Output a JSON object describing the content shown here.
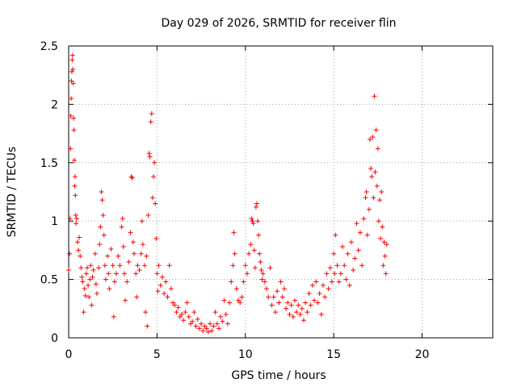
{
  "chart_data": {
    "type": "scatter",
    "title": "Day 029 of 2026, SRMTID for receiver flin",
    "xlabel": "GPS time / hours",
    "ylabel": "SRMTID / TECUs",
    "xlim": [
      0,
      24
    ],
    "ylim": [
      0,
      2.5
    ],
    "xticks": [
      0,
      5,
      10,
      15,
      20
    ],
    "xtick_labels": [
      "0",
      "5",
      "10",
      "15",
      "20"
    ],
    "yticks": [
      0,
      0.5,
      1,
      1.5,
      2,
      2.5
    ],
    "ytick_labels": [
      "0",
      "0.5",
      "1",
      "1.5",
      "2",
      "2.5"
    ],
    "grid": true,
    "marker": "+",
    "series": [
      {
        "name": "SRMTID",
        "color": "#ff0000",
        "points": [
          [
            0.0,
            0.58
          ],
          [
            0.05,
            0.72
          ],
          [
            0.08,
            1.02
          ],
          [
            0.1,
            1.62
          ],
          [
            0.12,
            1.9
          ],
          [
            0.14,
            2.05
          ],
          [
            0.16,
            2.2
          ],
          [
            0.18,
            2.28
          ],
          [
            0.2,
            2.38
          ],
          [
            0.22,
            2.42
          ],
          [
            0.24,
            2.3
          ],
          [
            0.26,
            2.18
          ],
          [
            0.28,
            1.88
          ],
          [
            0.3,
            1.78
          ],
          [
            0.32,
            1.52
          ],
          [
            0.34,
            1.3
          ],
          [
            0.36,
            1.38
          ],
          [
            0.38,
            1.22
          ],
          [
            0.4,
            1.05
          ],
          [
            0.42,
            0.98
          ],
          [
            0.45,
            1.02
          ],
          [
            0.5,
            0.82
          ],
          [
            0.55,
            0.75
          ],
          [
            0.6,
            0.86
          ],
          [
            0.65,
            0.7
          ],
          [
            0.7,
            0.6
          ],
          [
            0.75,
            0.52
          ],
          [
            0.8,
            0.48
          ],
          [
            0.85,
            0.22
          ],
          [
            0.9,
            0.42
          ],
          [
            0.95,
            0.36
          ],
          [
            1.0,
            0.55
          ],
          [
            1.05,
            0.6
          ],
          [
            1.1,
            0.45
          ],
          [
            1.15,
            0.35
          ],
          [
            1.2,
            0.5
          ],
          [
            1.25,
            0.62
          ],
          [
            1.3,
            0.28
          ],
          [
            1.35,
            0.52
          ],
          [
            1.4,
            0.58
          ],
          [
            1.5,
            0.72
          ],
          [
            1.55,
            0.46
          ],
          [
            1.6,
            0.38
          ],
          [
            1.7,
            0.6
          ],
          [
            1.75,
            0.8
          ],
          [
            1.8,
            0.95
          ],
          [
            1.85,
            1.25
          ],
          [
            1.9,
            1.18
          ],
          [
            1.95,
            1.05
          ],
          [
            2.0,
            0.88
          ],
          [
            2.05,
            0.62
          ],
          [
            2.1,
            0.5
          ],
          [
            2.2,
            0.7
          ],
          [
            2.25,
            0.55
          ],
          [
            2.3,
            0.42
          ],
          [
            2.4,
            0.76
          ],
          [
            2.5,
            0.62
          ],
          [
            2.55,
            0.18
          ],
          [
            2.6,
            0.48
          ],
          [
            2.7,
            0.55
          ],
          [
            2.8,
            0.7
          ],
          [
            2.9,
            0.62
          ],
          [
            3.0,
            0.95
          ],
          [
            3.05,
            1.02
          ],
          [
            3.1,
            0.78
          ],
          [
            3.15,
            0.55
          ],
          [
            3.2,
            0.32
          ],
          [
            3.3,
            0.48
          ],
          [
            3.4,
            0.65
          ],
          [
            3.5,
            0.9
          ],
          [
            3.55,
            1.38
          ],
          [
            3.6,
            1.37
          ],
          [
            3.65,
            0.82
          ],
          [
            3.7,
            0.72
          ],
          [
            3.8,
            0.55
          ],
          [
            3.85,
            0.35
          ],
          [
            3.9,
            0.62
          ],
          [
            4.0,
            0.58
          ],
          [
            4.1,
            0.72
          ],
          [
            4.15,
            1.0
          ],
          [
            4.2,
            0.8
          ],
          [
            4.3,
            0.62
          ],
          [
            4.35,
            0.22
          ],
          [
            4.4,
            0.7
          ],
          [
            4.45,
            0.1
          ],
          [
            4.5,
            1.05
          ],
          [
            4.55,
            1.58
          ],
          [
            4.6,
            1.55
          ],
          [
            4.65,
            1.85
          ],
          [
            4.7,
            1.92
          ],
          [
            4.75,
            1.2
          ],
          [
            4.8,
            1.38
          ],
          [
            4.85,
            1.5
          ],
          [
            4.9,
            1.15
          ],
          [
            4.95,
            0.85
          ],
          [
            5.0,
            0.55
          ],
          [
            5.05,
            0.4
          ],
          [
            5.1,
            0.62
          ],
          [
            5.2,
            0.45
          ],
          [
            5.3,
            0.52
          ],
          [
            5.4,
            0.38
          ],
          [
            5.5,
            0.48
          ],
          [
            5.6,
            0.35
          ],
          [
            5.7,
            0.62
          ],
          [
            5.8,
            0.42
          ],
          [
            5.9,
            0.3
          ],
          [
            6.0,
            0.28
          ],
          [
            6.1,
            0.22
          ],
          [
            6.2,
            0.26
          ],
          [
            6.3,
            0.18
          ],
          [
            6.4,
            0.2
          ],
          [
            6.5,
            0.15
          ],
          [
            6.6,
            0.22
          ],
          [
            6.7,
            0.3
          ],
          [
            6.8,
            0.18
          ],
          [
            6.9,
            0.12
          ],
          [
            7.0,
            0.14
          ],
          [
            7.1,
            0.22
          ],
          [
            7.2,
            0.1
          ],
          [
            7.3,
            0.16
          ],
          [
            7.4,
            0.08
          ],
          [
            7.5,
            0.12
          ],
          [
            7.6,
            0.06
          ],
          [
            7.7,
            0.1
          ],
          [
            7.8,
            0.08
          ],
          [
            7.9,
            0.05
          ],
          [
            8.0,
            0.12
          ],
          [
            8.1,
            0.06
          ],
          [
            8.2,
            0.1
          ],
          [
            8.3,
            0.22
          ],
          [
            8.4,
            0.12
          ],
          [
            8.5,
            0.08
          ],
          [
            8.6,
            0.18
          ],
          [
            8.7,
            0.14
          ],
          [
            8.8,
            0.32
          ],
          [
            8.9,
            0.2
          ],
          [
            9.0,
            0.12
          ],
          [
            9.1,
            0.3
          ],
          [
            9.2,
            0.48
          ],
          [
            9.3,
            0.62
          ],
          [
            9.35,
            0.9
          ],
          [
            9.4,
            0.72
          ],
          [
            9.5,
            0.42
          ],
          [
            9.6,
            0.32
          ],
          [
            9.7,
            0.3
          ],
          [
            9.8,
            0.35
          ],
          [
            9.9,
            0.48
          ],
          [
            10.0,
            0.62
          ],
          [
            10.1,
            0.55
          ],
          [
            10.2,
            0.72
          ],
          [
            10.3,
            0.8
          ],
          [
            10.35,
            1.02
          ],
          [
            10.4,
            1.0
          ],
          [
            10.45,
            0.98
          ],
          [
            10.5,
            0.75
          ],
          [
            10.55,
            0.6
          ],
          [
            10.6,
            1.12
          ],
          [
            10.65,
            1.15
          ],
          [
            10.7,
            1.0
          ],
          [
            10.75,
            0.88
          ],
          [
            10.8,
            0.72
          ],
          [
            10.85,
            0.65
          ],
          [
            10.9,
            0.58
          ],
          [
            10.95,
            0.5
          ],
          [
            11.0,
            0.55
          ],
          [
            11.1,
            0.48
          ],
          [
            11.2,
            0.42
          ],
          [
            11.3,
            0.35
          ],
          [
            11.4,
            0.6
          ],
          [
            11.5,
            0.28
          ],
          [
            11.6,
            0.35
          ],
          [
            11.7,
            0.22
          ],
          [
            11.8,
            0.4
          ],
          [
            11.9,
            0.3
          ],
          [
            12.0,
            0.48
          ],
          [
            12.1,
            0.35
          ],
          [
            12.2,
            0.42
          ],
          [
            12.3,
            0.25
          ],
          [
            12.4,
            0.3
          ],
          [
            12.5,
            0.2
          ],
          [
            12.6,
            0.28
          ],
          [
            12.7,
            0.18
          ],
          [
            12.8,
            0.32
          ],
          [
            12.9,
            0.22
          ],
          [
            13.0,
            0.28
          ],
          [
            13.1,
            0.2
          ],
          [
            13.2,
            0.25
          ],
          [
            13.3,
            0.15
          ],
          [
            13.4,
            0.3
          ],
          [
            13.5,
            0.22
          ],
          [
            13.6,
            0.38
          ],
          [
            13.7,
            0.28
          ],
          [
            13.8,
            0.45
          ],
          [
            13.9,
            0.32
          ],
          [
            14.0,
            0.48
          ],
          [
            14.1,
            0.3
          ],
          [
            14.2,
            0.38
          ],
          [
            14.3,
            0.2
          ],
          [
            14.4,
            0.45
          ],
          [
            14.5,
            0.35
          ],
          [
            14.6,
            0.55
          ],
          [
            14.7,
            0.42
          ],
          [
            14.8,
            0.6
          ],
          [
            14.9,
            0.48
          ],
          [
            15.0,
            0.72
          ],
          [
            15.05,
            0.55
          ],
          [
            15.1,
            0.88
          ],
          [
            15.2,
            0.62
          ],
          [
            15.3,
            0.48
          ],
          [
            15.4,
            0.55
          ],
          [
            15.5,
            0.78
          ],
          [
            15.6,
            0.62
          ],
          [
            15.7,
            0.5
          ],
          [
            15.8,
            0.72
          ],
          [
            15.9,
            0.45
          ],
          [
            16.0,
            0.82
          ],
          [
            16.1,
            0.58
          ],
          [
            16.2,
            0.68
          ],
          [
            16.3,
            0.98
          ],
          [
            16.4,
            0.75
          ],
          [
            16.5,
            0.9
          ],
          [
            16.6,
            0.62
          ],
          [
            16.7,
            1.02
          ],
          [
            16.8,
            1.2
          ],
          [
            16.85,
            1.25
          ],
          [
            16.9,
            0.88
          ],
          [
            17.0,
            1.1
          ],
          [
            17.05,
            1.7
          ],
          [
            17.1,
            1.45
          ],
          [
            17.15,
            1.38
          ],
          [
            17.2,
            1.72
          ],
          [
            17.25,
            1.2
          ],
          [
            17.3,
            2.07
          ],
          [
            17.35,
            1.42
          ],
          [
            17.4,
            1.78
          ],
          [
            17.45,
            1.3
          ],
          [
            17.5,
            1.62
          ],
          [
            17.55,
            1.0
          ],
          [
            17.6,
            1.18
          ],
          [
            17.65,
            0.85
          ],
          [
            17.7,
            1.25
          ],
          [
            17.75,
            0.95
          ],
          [
            17.8,
            0.62
          ],
          [
            17.85,
            0.82
          ],
          [
            17.9,
            0.7
          ],
          [
            17.95,
            0.55
          ],
          [
            18.0,
            0.8
          ]
        ]
      }
    ]
  }
}
